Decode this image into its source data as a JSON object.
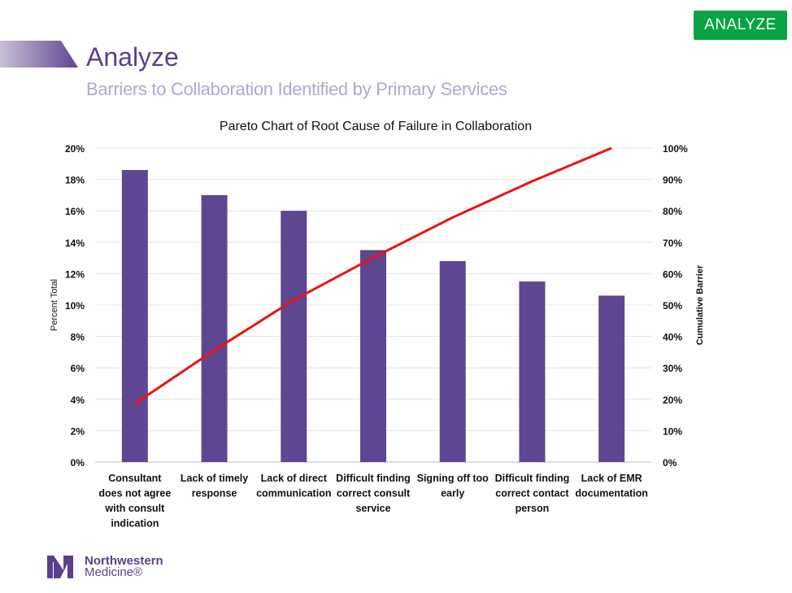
{
  "header": {
    "badge": "ANALYZE",
    "title": "Analyze",
    "subtitle": "Barriers to Collaboration Identified by Primary Services"
  },
  "logo": {
    "line1": "Northwestern",
    "line2": "Medicine®"
  },
  "chart_data": {
    "type": "bar",
    "title": "Pareto Chart of Root Cause of Failure in Collaboration",
    "ylabel": "Percent Total",
    "y2label": "Cumulative Barrier",
    "ylim": [
      0,
      20
    ],
    "y2lim": [
      0,
      100
    ],
    "yticks": [
      "0%",
      "2%",
      "4%",
      "6%",
      "8%",
      "10%",
      "12%",
      "14%",
      "16%",
      "18%",
      "20%"
    ],
    "y2ticks": [
      "0%",
      "10%",
      "20%",
      "30%",
      "40%",
      "50%",
      "60%",
      "70%",
      "80%",
      "90%",
      "100%"
    ],
    "categories": [
      [
        "Consultant",
        "does not agree",
        "with consult",
        "indication"
      ],
      [
        "Lack of timely",
        "response"
      ],
      [
        "Lack of direct",
        "communication"
      ],
      [
        "Difficult finding",
        "correct consult",
        "service"
      ],
      [
        "Signing off too",
        "early"
      ],
      [
        "Difficult finding",
        "correct contact",
        "person"
      ],
      [
        "Lack of EMR",
        "documentation"
      ]
    ],
    "series": [
      {
        "name": "Percent Total",
        "type": "bar",
        "color": "#5f4690",
        "values": [
          18.6,
          17.0,
          16.0,
          13.5,
          12.8,
          11.5,
          10.6
        ]
      },
      {
        "name": "Cumulative Barrier",
        "type": "line",
        "axis": "right",
        "color": "#ee1111",
        "values": [
          18.6,
          35.6,
          51.6,
          65.1,
          77.9,
          89.4,
          100
        ]
      }
    ],
    "grid": true
  }
}
